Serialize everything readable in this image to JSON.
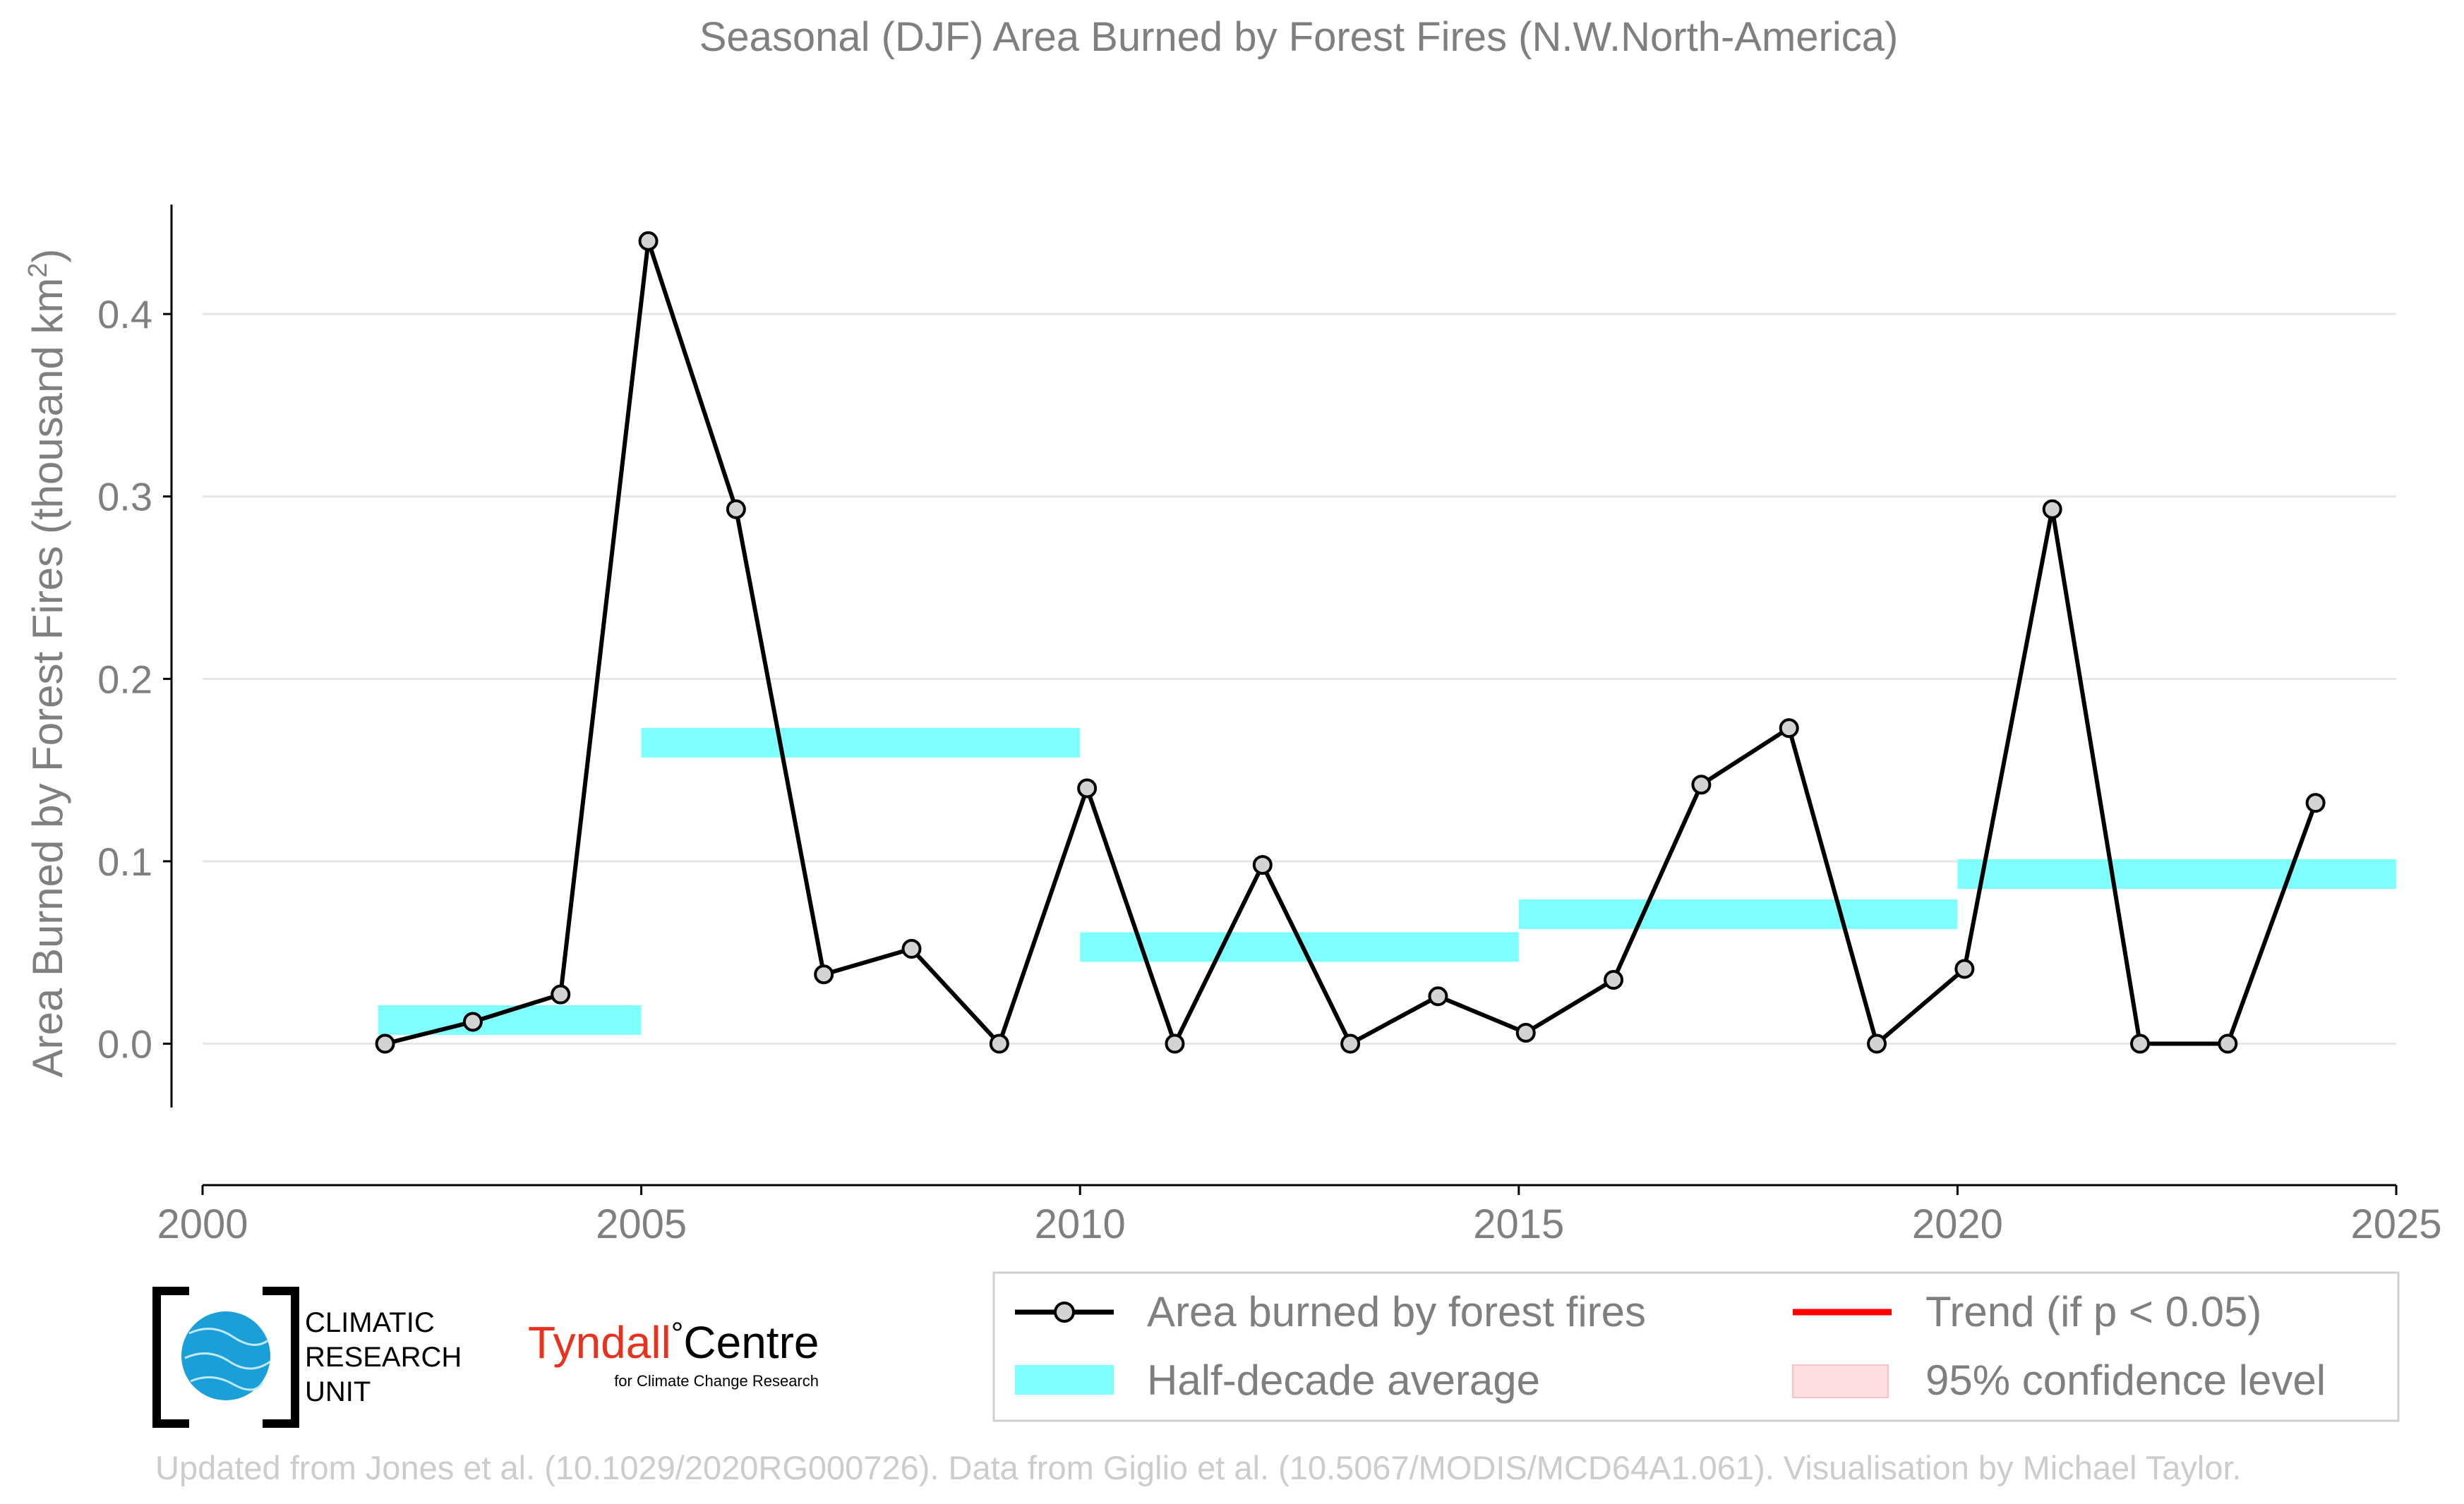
{
  "chart_data": {
    "type": "line",
    "title": "Seasonal (DJF) Area Burned by Forest Fires (N.W.North-America)",
    "xlabel": "",
    "ylabel_main": "Area Burned by Forest Fires (thousand km",
    "ylabel_sup": "2",
    "ylabel_close": ")",
    "xlim": [
      2000,
      2025
    ],
    "ylim": [
      -0.035,
      0.46
    ],
    "x_ticks": [
      2000,
      2005,
      2010,
      2015,
      2020,
      2025
    ],
    "x_tick_labels": [
      "2000",
      "2005",
      "2010",
      "2015",
      "2020",
      "2025"
    ],
    "y_ticks": [
      0.0,
      0.1,
      0.2,
      0.3,
      0.4
    ],
    "y_tick_labels": [
      "0.0",
      "0.1",
      "0.2",
      "0.3",
      "0.4"
    ],
    "grid": "horizontal",
    "legend_position": "bottom-right",
    "series": [
      {
        "name": "Area burned by forest fires",
        "color": "#000000",
        "marker_fill": "#d3d3d3",
        "x": [
          2002.08,
          2003.08,
          2004.08,
          2005.08,
          2006.08,
          2007.08,
          2008.08,
          2009.08,
          2010.08,
          2011.08,
          2012.08,
          2013.08,
          2014.08,
          2015.08,
          2016.08,
          2017.08,
          2018.08,
          2019.08,
          2020.08,
          2021.08,
          2022.08,
          2023.08,
          2024.08
        ],
        "y": [
          0.0,
          0.012,
          0.027,
          0.44,
          0.293,
          0.038,
          0.052,
          0.0,
          0.14,
          0.0,
          0.098,
          0.0,
          0.026,
          0.006,
          0.035,
          0.142,
          0.173,
          0.0,
          0.041,
          0.293,
          0.0,
          0.0,
          0.132
        ]
      }
    ],
    "half_decade_average": {
      "name": "Half-decade average",
      "color": "#7fffff",
      "segments": [
        {
          "x0": 2002.0,
          "x1": 2005.0,
          "y": 0.013
        },
        {
          "x0": 2005.0,
          "x1": 2010.0,
          "y": 0.165
        },
        {
          "x0": 2010.0,
          "x1": 2015.0,
          "y": 0.053
        },
        {
          "x0": 2015.0,
          "x1": 2020.0,
          "y": 0.071
        },
        {
          "x0": 2020.0,
          "x1": 2025.0,
          "y": 0.093
        }
      ]
    },
    "legend": {
      "line_label": "Area burned by forest fires",
      "average_label": "Half-decade average",
      "trend_label": "Trend (if p < 0.05)",
      "ci_label": "95% confidence level",
      "trend_color": "#ff0000",
      "ci_color": "#ffdde1"
    }
  },
  "logos": {
    "cru_line1": "CLIMATIC",
    "cru_line2": "RESEARCH",
    "cru_line3": "UNIT",
    "tyndall_main": "Tyndall",
    "tyndall_degree": "°",
    "tyndall_centre": "Centre",
    "tyndall_sub": "for Climate Change Research",
    "tyndall_color": "#e8321e",
    "cru_globe_color": "#1a9fd8"
  },
  "footer": {
    "credit": "Updated from Jones et al. (10.1029/2020RG000726). Data from Giglio et al. (10.5067/MODIS/MCD64A1.061). Visualisation by Michael Taylor."
  },
  "colors": {
    "text_gray": "#7f7f7f",
    "grid": "#e6e6e6",
    "footer_gray": "#cccccc"
  }
}
